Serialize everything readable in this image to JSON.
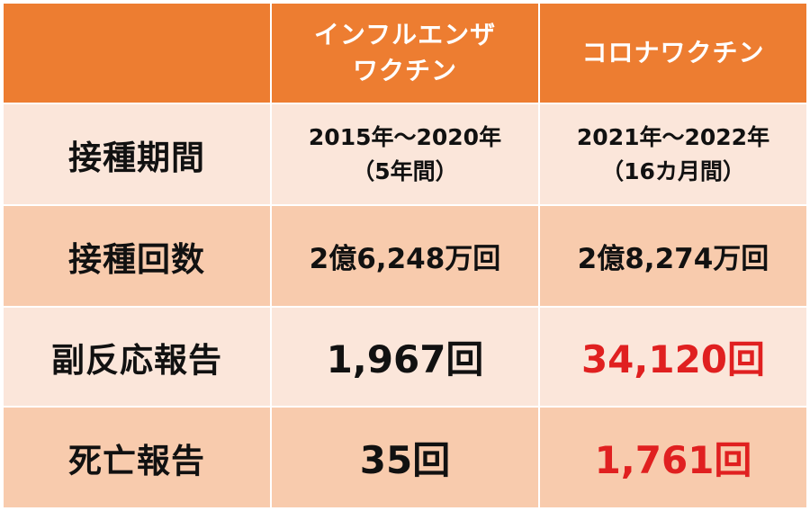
{
  "columns": {
    "influenza": [
      "インフルエンザ",
      "ワクチン"
    ],
    "corona": "コロナワクチン"
  },
  "rows": {
    "period": {
      "label": "接種期間",
      "influenza": [
        "2015年〜2020年",
        "（5年間）"
      ],
      "corona": [
        "2021年〜2022年",
        "（16カ月間）"
      ]
    },
    "count": {
      "label": "接種回数",
      "influenza": "2億6,248万回",
      "corona": "2億8,274万回"
    },
    "adverse": {
      "label": "副反応報告",
      "influenza": "1,967回",
      "corona": "34,120回"
    },
    "death": {
      "label": "死亡報告",
      "influenza": "35回",
      "corona": "1,761回"
    }
  },
  "colors": {
    "header_bg": "#ED7D31",
    "row_light": "#FBE6DA",
    "row_dark": "#F8CBAD",
    "highlight_text": "#E02020"
  }
}
